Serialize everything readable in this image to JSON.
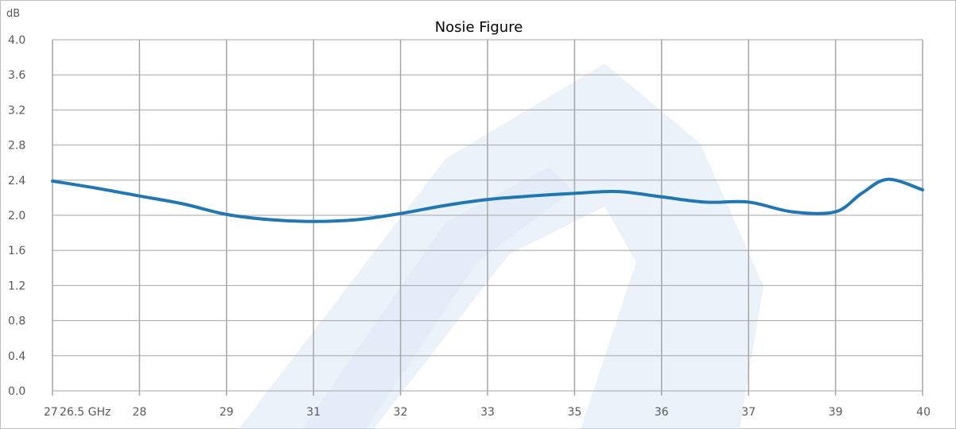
{
  "chart_data": {
    "type": "line",
    "title": "Nosie Figure",
    "ylabel": "dB",
    "xlabel": "",
    "ylim": [
      0,
      4.0
    ],
    "y_ticks": [
      "0.0",
      "0.4",
      "0.8",
      "1.2",
      "1.6",
      "2.0",
      "2.4",
      "2.8",
      "3.2",
      "3.6",
      "4.0"
    ],
    "x_tick_labels": [
      "27",
      "28",
      "29",
      "31",
      "32",
      "33",
      "35",
      "36",
      "37",
      "39",
      "40"
    ],
    "x_annotation": "26.5 GHz",
    "grid": true,
    "series": [
      {
        "values": [
          [
            0.0,
            2.39
          ],
          [
            0.5,
            2.31
          ],
          [
            1.0,
            2.22
          ],
          [
            1.5,
            2.13
          ],
          [
            2.0,
            2.01
          ],
          [
            2.5,
            1.95
          ],
          [
            3.0,
            1.93
          ],
          [
            3.5,
            1.95
          ],
          [
            4.0,
            2.02
          ],
          [
            4.5,
            2.11
          ],
          [
            5.0,
            2.18
          ],
          [
            5.5,
            2.22
          ],
          [
            6.0,
            2.25
          ],
          [
            6.5,
            2.27
          ],
          [
            7.0,
            2.21
          ],
          [
            7.5,
            2.15
          ],
          [
            8.0,
            2.15
          ],
          [
            8.5,
            2.04
          ],
          [
            9.0,
            2.04
          ],
          [
            9.3,
            2.25
          ],
          [
            9.6,
            2.41
          ],
          [
            10.0,
            2.29
          ]
        ]
      }
    ],
    "colors": {
      "line": "#1f77b4",
      "grid": "#a6a6a6",
      "watermark": "#dbe8f6"
    }
  }
}
